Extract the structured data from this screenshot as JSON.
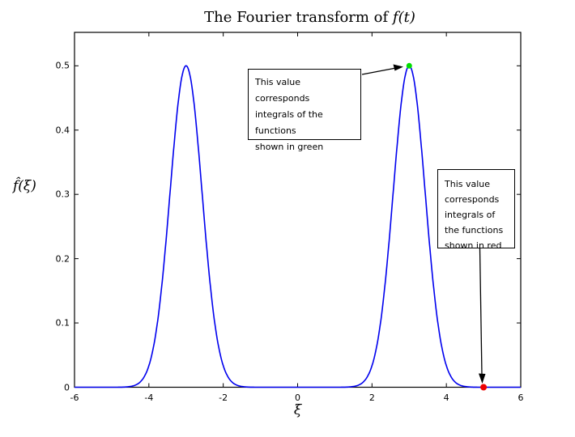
{
  "title": {
    "prefix": "The Fourier transform of ",
    "math": "f(t)"
  },
  "axes": {
    "ylabel": "f̂(ξ)",
    "xlabel": "ξ",
    "xtick_values": [
      -6,
      -4,
      -2,
      0,
      2,
      4,
      6
    ],
    "xtick_labels": [
      "-6",
      "-4",
      "-2",
      "0",
      "2",
      "4",
      "6"
    ],
    "ytick_values": [
      0,
      0.1,
      0.2,
      0.3,
      0.4,
      0.5
    ],
    "ytick_labels": [
      "0",
      "0.1",
      "0.2",
      "0.3",
      "0.4",
      "0.5"
    ]
  },
  "chart_data": {
    "type": "line",
    "title": "The Fourier transform of f(t)",
    "xlabel": "xi",
    "ylabel": "fhat(xi)",
    "xlim": [
      -6,
      6
    ],
    "ylim": [
      0,
      0.552
    ],
    "grid": false,
    "series": [
      {
        "name": "fourier-transform-curve",
        "color": "#0000EE",
        "model": "sum of two Gaussians: y = sum amplitude*exp(-(x-center)^2/(2*sigma^2))",
        "peaks": [
          {
            "center": -3,
            "amplitude": 0.5,
            "sigma": 0.43
          },
          {
            "center": 3,
            "amplitude": 0.5,
            "sigma": 0.43
          }
        ],
        "key_points": [
          {
            "x": -3,
            "y": 0.5
          },
          {
            "x": 0,
            "y": 0
          },
          {
            "x": 3,
            "y": 0.5
          }
        ]
      }
    ],
    "markers": [
      {
        "name": "green-marker",
        "x": 3,
        "y": 0.5,
        "color": "#00DD00",
        "r": 3.5
      },
      {
        "name": "red-marker",
        "x": 5,
        "y": 0,
        "color": "#EE0000",
        "r": 4
      }
    ]
  },
  "annotations": {
    "green_box": {
      "text": "This value corresponds\nintegrals of the functions\n shown in green"
    },
    "red_box": {
      "text": "This value\ncorresponds\nintegrals of\nthe functions\nshown in red"
    }
  },
  "colors": {
    "curve": "#0000EE",
    "green_marker": "#00DD00",
    "red_marker": "#EE0000",
    "axis": "#000000",
    "background": "#FFFFFF"
  }
}
